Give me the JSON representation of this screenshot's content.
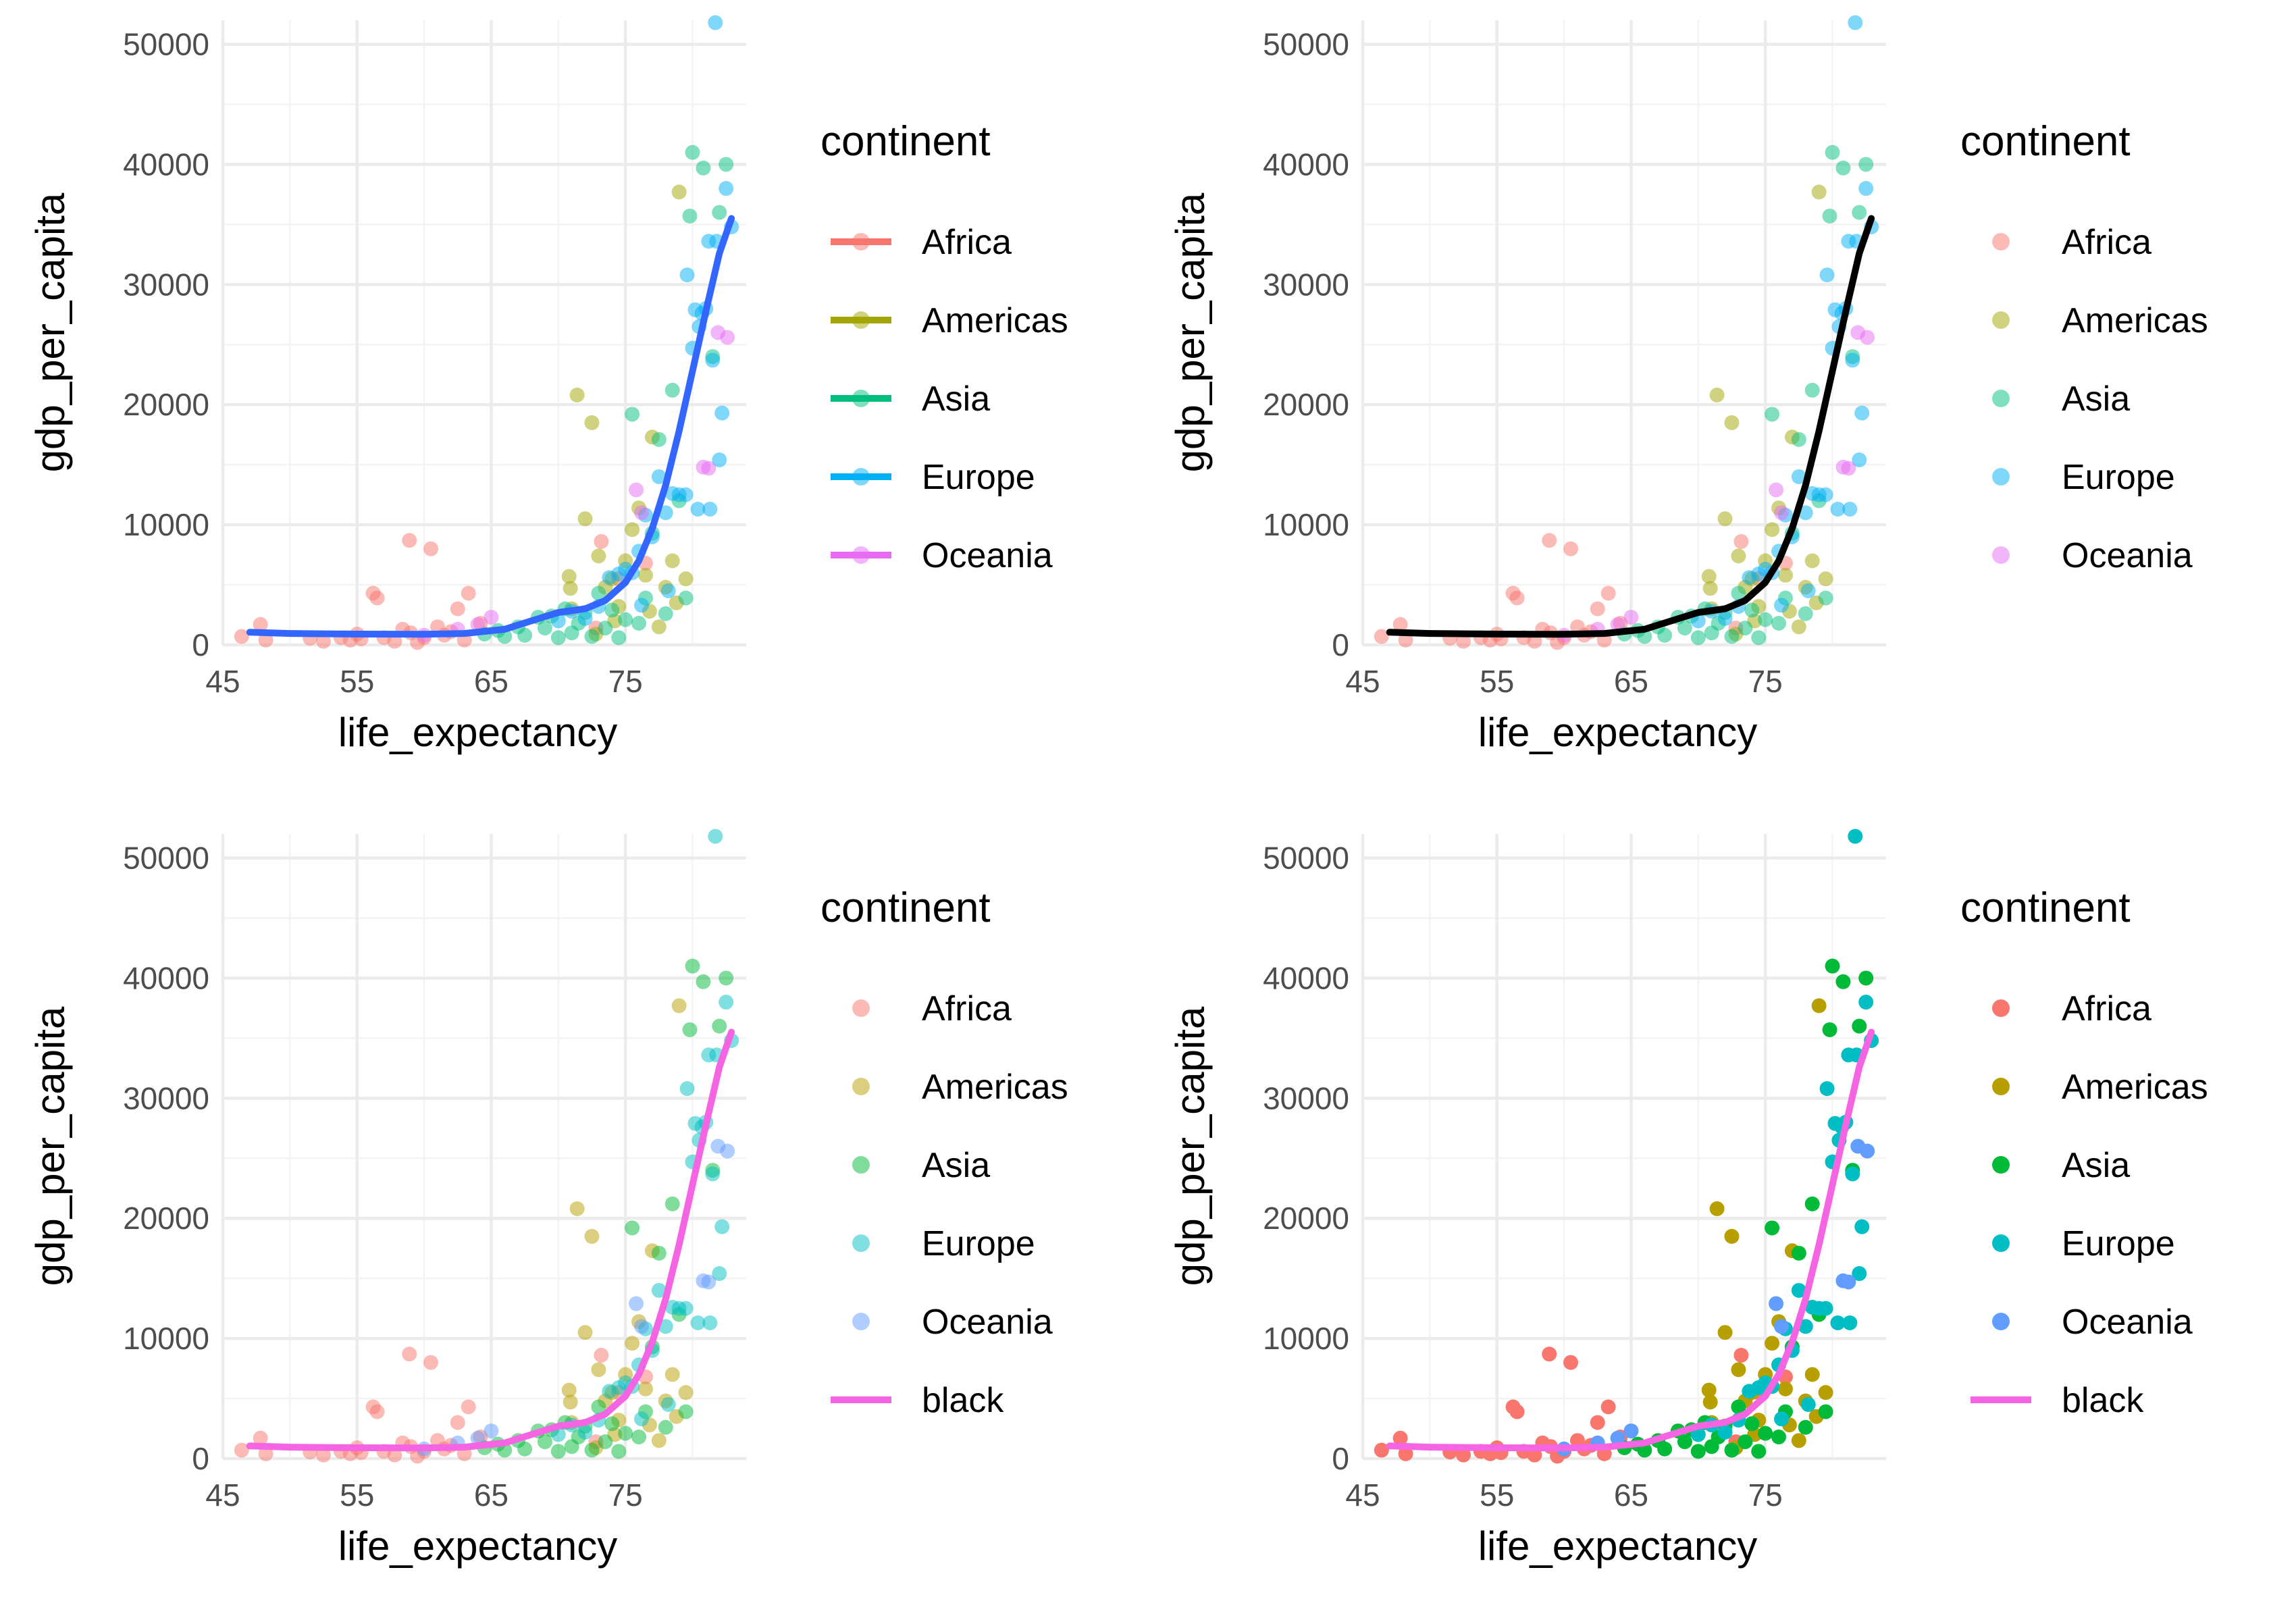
{
  "palette": {
    "hue": {
      "Africa": "#F8766D",
      "Americas": "#A3A500",
      "Asia": "#00BF7D",
      "Europe": "#00B0F6",
      "Oceania": "#E76BF3"
    },
    "hue_alt": {
      "Africa": "#F8766D",
      "Americas": "#B79F00",
      "Asia": "#00BA38",
      "Europe": "#00BFC4",
      "Oceania": "#619CFF"
    },
    "smooth_blue": "#3366FF",
    "smooth_black": "#000000",
    "smooth_pink": "#F564E3",
    "grid_major": "#EBEBEB",
    "grid_minor": "#F3F3F3"
  },
  "chart_data": [
    {
      "type": "scatter",
      "panel": "top-left",
      "xlabel": "life_expectancy",
      "ylabel": "gdp_per_capita",
      "xlim": [
        45,
        84
      ],
      "ylim": [
        0,
        52000
      ],
      "x_ticks": [
        "45",
        "55",
        "65",
        "75"
      ],
      "y_ticks": [
        "0",
        "10000",
        "20000",
        "30000",
        "40000",
        "50000"
      ],
      "grid": true,
      "legend": {
        "title": "continent",
        "position": "right",
        "key": "line-point",
        "entries": [
          "Africa",
          "Americas",
          "Asia",
          "Europe",
          "Oceania"
        ]
      },
      "point_palette": "hue",
      "point_alpha": 0.5,
      "smooth": {
        "color": "smooth_blue",
        "label": ""
      }
    },
    {
      "type": "scatter",
      "panel": "top-right",
      "xlabel": "life_expectancy",
      "ylabel": "gdp_per_capita",
      "xlim": [
        45,
        84
      ],
      "ylim": [
        0,
        52000
      ],
      "x_ticks": [
        "45",
        "55",
        "65",
        "75"
      ],
      "y_ticks": [
        "0",
        "10000",
        "20000",
        "30000",
        "40000",
        "50000"
      ],
      "grid": true,
      "legend": {
        "title": "continent",
        "position": "right",
        "key": "point",
        "entries": [
          "Africa",
          "Americas",
          "Asia",
          "Europe",
          "Oceania"
        ]
      },
      "point_palette": "hue",
      "point_alpha": 0.5,
      "smooth": {
        "color": "smooth_black",
        "label": ""
      }
    },
    {
      "type": "scatter",
      "panel": "bottom-left",
      "xlabel": "life_expectancy",
      "ylabel": "gdp_per_capita",
      "xlim": [
        45,
        84
      ],
      "ylim": [
        0,
        52000
      ],
      "x_ticks": [
        "45",
        "55",
        "65",
        "75"
      ],
      "y_ticks": [
        "0",
        "10000",
        "20000",
        "30000",
        "40000",
        "50000"
      ],
      "grid": true,
      "legend": {
        "title": "continent",
        "position": "right",
        "key": "point",
        "entries": [
          "Africa",
          "Americas",
          "Asia",
          "Europe",
          "Oceania",
          "black"
        ]
      },
      "point_palette": "hue_alt",
      "point_alpha": 0.5,
      "smooth": {
        "color": "smooth_pink",
        "label": "black"
      }
    },
    {
      "type": "scatter",
      "panel": "bottom-right",
      "xlabel": "life_expectancy",
      "ylabel": "gdp_per_capita",
      "xlim": [
        45,
        84
      ],
      "ylim": [
        0,
        52000
      ],
      "x_ticks": [
        "45",
        "55",
        "65",
        "75"
      ],
      "y_ticks": [
        "0",
        "10000",
        "20000",
        "30000",
        "40000",
        "50000"
      ],
      "grid": true,
      "legend": {
        "title": "continent",
        "position": "right",
        "key": "point",
        "entries": [
          "Africa",
          "Americas",
          "Asia",
          "Europe",
          "Oceania",
          "black"
        ]
      },
      "point_palette": "hue_alt",
      "point_alpha": 1.0,
      "smooth": {
        "color": "smooth_pink",
        "label": "black"
      }
    }
  ],
  "points": {
    "Africa": [
      [
        46.4,
        700
      ],
      [
        47.8,
        1700
      ],
      [
        48.2,
        400
      ],
      [
        51.5,
        550
      ],
      [
        53.8,
        600
      ],
      [
        54.5,
        400
      ],
      [
        55.3,
        500
      ],
      [
        56.2,
        4300
      ],
      [
        56.5,
        3900
      ],
      [
        57.0,
        600
      ],
      [
        58.4,
        1300
      ],
      [
        58.9,
        8700
      ],
      [
        59.5,
        200
      ],
      [
        60.5,
        8000
      ],
      [
        61.0,
        1500
      ],
      [
        61.5,
        800
      ],
      [
        62.5,
        3000
      ],
      [
        63.0,
        400
      ],
      [
        63.3,
        4300
      ],
      [
        64.2,
        1800
      ],
      [
        72.8,
        1400
      ],
      [
        73.2,
        8600
      ],
      [
        74.5,
        5500
      ],
      [
        76.5,
        6800
      ],
      [
        55.0,
        900
      ],
      [
        57.8,
        300
      ],
      [
        60.0,
        600
      ],
      [
        62.0,
        1100
      ],
      [
        52.5,
        300
      ],
      [
        59.0,
        1000
      ]
    ],
    "Americas": [
      [
        70.8,
        5700
      ],
      [
        70.9,
        4700
      ],
      [
        71.0,
        3000
      ],
      [
        71.4,
        20800
      ],
      [
        72.0,
        10500
      ],
      [
        72.5,
        18500
      ],
      [
        73.0,
        7400
      ],
      [
        73.5,
        4800
      ],
      [
        74.0,
        5500
      ],
      [
        74.5,
        3200
      ],
      [
        75.0,
        7000
      ],
      [
        75.5,
        9600
      ],
      [
        76.0,
        11400
      ],
      [
        76.5,
        5800
      ],
      [
        77.0,
        17300
      ],
      [
        77.5,
        1500
      ],
      [
        78.0,
        4800
      ],
      [
        78.5,
        7000
      ],
      [
        79.0,
        37700
      ],
      [
        79.5,
        5500
      ],
      [
        78.8,
        3500
      ],
      [
        72.8,
        900
      ],
      [
        74.2,
        2000
      ],
      [
        76.8,
        2800
      ]
    ],
    "Asia": [
      [
        64.5,
        900
      ],
      [
        65.5,
        1200
      ],
      [
        66.0,
        700
      ],
      [
        67.0,
        1500
      ],
      [
        67.5,
        800
      ],
      [
        68.5,
        2300
      ],
      [
        69.0,
        1400
      ],
      [
        69.5,
        2400
      ],
      [
        70.0,
        600
      ],
      [
        70.5,
        3000
      ],
      [
        71.0,
        1000
      ],
      [
        71.5,
        1800
      ],
      [
        72.0,
        2700
      ],
      [
        72.5,
        700
      ],
      [
        73.0,
        4300
      ],
      [
        73.5,
        1400
      ],
      [
        74.0,
        2900
      ],
      [
        74.5,
        600
      ],
      [
        75.0,
        2100
      ],
      [
        75.5,
        19200
      ],
      [
        76.0,
        1800
      ],
      [
        76.5,
        3900
      ],
      [
        77.0,
        9300
      ],
      [
        77.5,
        17100
      ],
      [
        78.0,
        2600
      ],
      [
        78.5,
        21200
      ],
      [
        79.0,
        12000
      ],
      [
        79.5,
        3900
      ],
      [
        80.0,
        41000
      ],
      [
        79.8,
        35700
      ],
      [
        80.8,
        39700
      ],
      [
        81.5,
        24000
      ],
      [
        82.5,
        40000
      ],
      [
        82.0,
        36000
      ]
    ],
    "Europe": [
      [
        70.0,
        2000
      ],
      [
        71.0,
        2800
      ],
      [
        72.0,
        2200
      ],
      [
        73.0,
        3200
      ],
      [
        73.8,
        5600
      ],
      [
        74.5,
        5900
      ],
      [
        75.0,
        6300
      ],
      [
        75.5,
        6000
      ],
      [
        76.0,
        7800
      ],
      [
        76.5,
        10800
      ],
      [
        77.0,
        9000
      ],
      [
        77.5,
        14000
      ],
      [
        78.0,
        11000
      ],
      [
        78.5,
        12600
      ],
      [
        79.0,
        12500
      ],
      [
        79.5,
        12500
      ],
      [
        80.0,
        24700
      ],
      [
        80.2,
        27900
      ],
      [
        80.5,
        26500
      ],
      [
        80.7,
        27600
      ],
      [
        81.0,
        28000
      ],
      [
        81.2,
        33600
      ],
      [
        81.5,
        23700
      ],
      [
        81.8,
        33600
      ],
      [
        82.0,
        15400
      ],
      [
        82.2,
        19300
      ],
      [
        82.5,
        38000
      ],
      [
        82.9,
        34800
      ],
      [
        81.7,
        51800
      ],
      [
        79.6,
        30800
      ],
      [
        80.4,
        11300
      ],
      [
        81.3,
        11300
      ],
      [
        76.2,
        3300
      ],
      [
        78.2,
        4500
      ]
    ],
    "Oceania": [
      [
        60.0,
        800
      ],
      [
        62.5,
        1300
      ],
      [
        64.0,
        1700
      ],
      [
        65.0,
        2300
      ],
      [
        75.8,
        12900
      ],
      [
        76.2,
        11000
      ],
      [
        80.8,
        14800
      ],
      [
        81.2,
        14700
      ],
      [
        82.6,
        25600
      ],
      [
        81.9,
        26000
      ]
    ]
  },
  "smooth_curve": [
    [
      47.0,
      1050
    ],
    [
      50.0,
      950
    ],
    [
      55.0,
      900
    ],
    [
      60.0,
      880
    ],
    [
      63.0,
      950
    ],
    [
      66.0,
      1300
    ],
    [
      68.0,
      2000
    ],
    [
      70.0,
      2700
    ],
    [
      72.0,
      3000
    ],
    [
      73.5,
      3700
    ],
    [
      75.0,
      5200
    ],
    [
      76.0,
      7000
    ],
    [
      77.0,
      9700
    ],
    [
      78.0,
      13300
    ],
    [
      79.0,
      17800
    ],
    [
      80.0,
      22800
    ],
    [
      81.0,
      27800
    ],
    [
      82.0,
      32600
    ],
    [
      82.9,
      35500
    ]
  ]
}
